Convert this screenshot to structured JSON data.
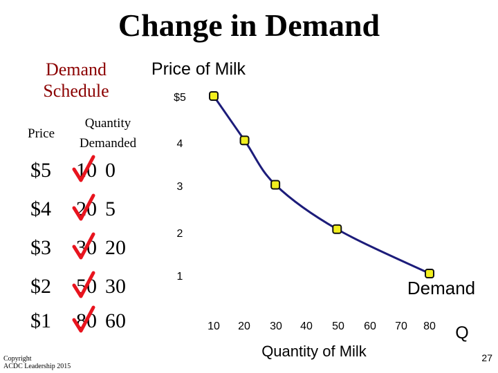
{
  "slide": {
    "title": "Change in Demand",
    "copyright_line1": "Copyright",
    "copyright_line2": "ACDC Leadership 2015",
    "page_number": "27"
  },
  "schedule": {
    "title_line1": "Demand",
    "title_line2": "Schedule",
    "price_header": "Price",
    "quantity_header_line1": "Quantity",
    "quantity_header_line2": "Demanded",
    "rows": [
      {
        "price": "$5",
        "old_quantity": "10",
        "new_quantity": "0"
      },
      {
        "price": "$4",
        "old_quantity": "20",
        "new_quantity": "5"
      },
      {
        "price": "$3",
        "old_quantity": "30",
        "new_quantity": "20"
      },
      {
        "price": "$2",
        "old_quantity": "50",
        "new_quantity": "30"
      },
      {
        "price": "$1",
        "old_quantity": "80",
        "new_quantity": "60"
      }
    ],
    "strike_color": "#e8141e"
  },
  "chart_data": {
    "type": "line",
    "ylabel": "Price of Milk",
    "xlabel": "Quantity of Milk",
    "x_axis_end_label": "Q",
    "curve_label": "Demand",
    "x_ticks": [
      "10",
      "20",
      "30",
      "40",
      "50",
      "60",
      "70",
      "80"
    ],
    "y_ticks": [
      "$5",
      "4",
      "3",
      "2",
      "1"
    ],
    "xlim": [
      10,
      80
    ],
    "ylim": [
      1,
      5
    ],
    "points": [
      {
        "x": 10,
        "y": 5
      },
      {
        "x": 20,
        "y": 4
      },
      {
        "x": 30,
        "y": 3
      },
      {
        "x": 50,
        "y": 2
      },
      {
        "x": 80,
        "y": 1
      }
    ],
    "line_color": "#1c1c7a",
    "marker_color": "#f2ef1e",
    "grid": false
  }
}
